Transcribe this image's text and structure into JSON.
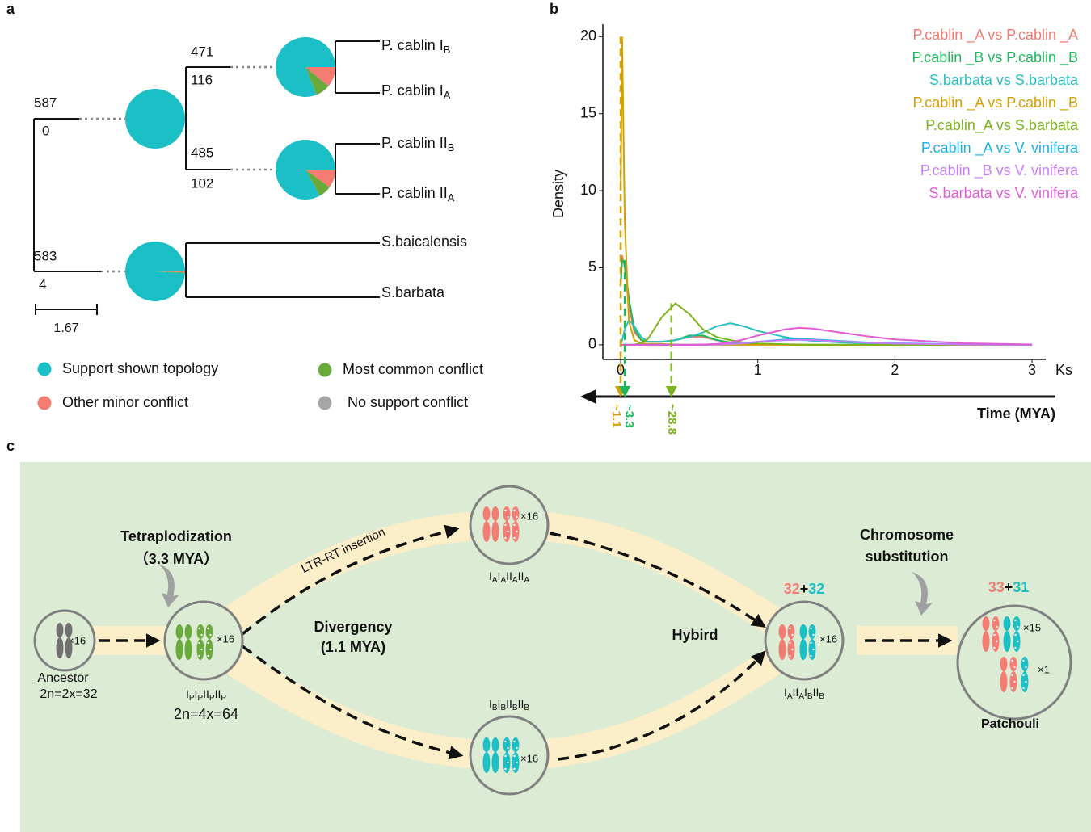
{
  "panel_a": {
    "label": "a",
    "nodes": [
      {
        "above": 587,
        "below": 0,
        "pie": [
          100,
          0,
          0
        ]
      },
      {
        "above": 471,
        "below": 116,
        "pie": [
          81,
          11,
          8
        ]
      },
      {
        "above": 485,
        "below": 102,
        "pie": [
          83,
          10,
          7
        ]
      },
      {
        "above": 583,
        "below": 4,
        "pie": [
          99,
          0.5,
          0.5
        ]
      }
    ],
    "tips": [
      {
        "name": "P. cablin I",
        "sub": "B"
      },
      {
        "name": "P. cablin I",
        "sub": "A"
      },
      {
        "name": "P. cablin II",
        "sub": "B"
      },
      {
        "name": "P. cablin II",
        "sub": "A"
      },
      {
        "name": "S.baicalensis"
      },
      {
        "name": "S.barbata"
      }
    ],
    "scale_bar": 1.67,
    "legend": [
      {
        "label": "Support shown topology",
        "color": "#1bbfc6"
      },
      {
        "label": "Other minor conflict",
        "color": "#f47d73"
      },
      {
        "label": "Most common conflict",
        "color": "#6aaa3a"
      },
      {
        "label": "No support conflict",
        "color": "#a6a6a6"
      }
    ]
  },
  "chart_data": {
    "type": "line",
    "label": "b",
    "xlabel": "Ks",
    "ylabel": "Density",
    "time_axis": "Time (MYA)",
    "x": [
      0,
      0.01,
      0.03,
      0.06,
      0.1,
      0.15,
      0.2,
      0.3,
      0.4,
      0.5,
      0.6,
      0.7,
      0.8,
      0.9,
      1.0,
      1.2,
      1.3,
      1.4,
      1.6,
      1.8,
      2.0,
      2.5,
      3.0
    ],
    "series": [
      {
        "name": "P.cablin _A vs P.cablin _A",
        "color": "#f07b72",
        "values": [
          4.0,
          5.8,
          5.0,
          2.5,
          0.8,
          0.3,
          0.2,
          0.2,
          0.3,
          0.5,
          0.5,
          0.3,
          0.15,
          0.08,
          0.05,
          0.02,
          0,
          0,
          0,
          0,
          0,
          0,
          0
        ]
      },
      {
        "name": "P.cablin _B vs P.cablin _B",
        "color": "#1db85a",
        "values": [
          3.8,
          5.5,
          5.3,
          3.0,
          1.0,
          0.3,
          0.2,
          0.2,
          0.3,
          0.6,
          0.6,
          0.3,
          0.15,
          0.08,
          0.05,
          0.02,
          0,
          0,
          0,
          0,
          0,
          0,
          0
        ]
      },
      {
        "name": "S.barbata vs S.barbata",
        "color": "#2bbfbf",
        "values": [
          0,
          0.3,
          1.0,
          1.6,
          1.2,
          0.5,
          0.2,
          0.2,
          0.3,
          0.5,
          0.8,
          1.2,
          1.4,
          1.2,
          0.9,
          0.5,
          0.35,
          0.25,
          0.15,
          0.1,
          0.05,
          0,
          0
        ]
      },
      {
        "name": "P.cablin _A vs P.cablin _B",
        "color": "#d4a000",
        "values": [
          10,
          20,
          8,
          1.5,
          0.3,
          0.1,
          0.05,
          0.05,
          0.02,
          0,
          0,
          0,
          0,
          0,
          0,
          0,
          0,
          0,
          0,
          0,
          0,
          0,
          0
        ]
      },
      {
        "name": "P.cablin_A vs S.barbata",
        "color": "#7db31c",
        "values": [
          0,
          0,
          0,
          0,
          0.02,
          0.1,
          0.4,
          1.8,
          2.7,
          2.0,
          1.0,
          0.5,
          0.3,
          0.15,
          0.08,
          0.03,
          0.02,
          0.01,
          0,
          0,
          0,
          0,
          0
        ]
      },
      {
        "name": "P.cablin _A vs V. vinifera",
        "color": "#1ab0e8",
        "values": [
          0,
          0,
          0,
          0,
          0,
          0,
          0,
          0,
          0,
          0,
          0,
          0.02,
          0.05,
          0.1,
          0.2,
          0.35,
          0.38,
          0.35,
          0.25,
          0.15,
          0.1,
          0.03,
          0
        ]
      },
      {
        "name": "P.cablin _B vs V. vinifera",
        "color": "#c77cff",
        "values": [
          0,
          0,
          0,
          0,
          0,
          0,
          0,
          0,
          0,
          0,
          0,
          0.02,
          0.05,
          0.1,
          0.2,
          0.3,
          0.32,
          0.3,
          0.22,
          0.14,
          0.08,
          0.02,
          0
        ]
      },
      {
        "name": "S.barbata vs V. vinifera",
        "color": "#e05cd6",
        "values": [
          0,
          0,
          0,
          0,
          0,
          0,
          0,
          0,
          0,
          0,
          0.02,
          0.05,
          0.15,
          0.35,
          0.6,
          1.0,
          1.1,
          1.05,
          0.8,
          0.55,
          0.35,
          0.1,
          0.02
        ]
      }
    ],
    "xlim": [
      -0.13,
      3.1
    ],
    "ylim": [
      -0.95,
      20.8
    ],
    "xticks": [
      0,
      1,
      2,
      3
    ],
    "yticks": [
      0,
      5,
      10,
      15,
      20
    ],
    "legend": "top-right",
    "annotations": [
      {
        "x": 0,
        "y": 20,
        "label": "~1.1",
        "color": "#d4a000"
      },
      {
        "x": 0.03,
        "y": 5.5,
        "label": "~3.3",
        "color": "#1db85a"
      },
      {
        "x": 0.37,
        "y": 2.7,
        "label": "~28.8",
        "color": "#7db31c"
      }
    ]
  },
  "panel_c": {
    "label": "c",
    "plus": "+",
    "ancestor": {
      "name": "Ancestor",
      "ploidy": "2n=2x=32",
      "copies": "×16"
    },
    "tetraploid": {
      "genome": [
        [
          "I",
          "P"
        ],
        [
          "I",
          "P"
        ],
        [
          "II",
          "P"
        ],
        [
          "II",
          "P"
        ]
      ],
      "ploidy": "2n=4x=64",
      "copies": "×16"
    },
    "subgenome_a": {
      "genome": [
        [
          "I",
          "A"
        ],
        [
          "I",
          "A"
        ],
        [
          "II",
          "A"
        ],
        [
          "II",
          "A"
        ]
      ],
      "copies": "×16"
    },
    "subgenome_b": {
      "genome": [
        [
          "I",
          "B"
        ],
        [
          "I",
          "B"
        ],
        [
          "II",
          "B"
        ],
        [
          "II",
          "B"
        ]
      ],
      "copies": "×16"
    },
    "hybrid": {
      "genome": [
        [
          "I",
          "A"
        ],
        [
          "II",
          "A"
        ],
        [
          "I",
          "B"
        ],
        [
          "II",
          "B"
        ]
      ],
      "copies": "×16",
      "count_a": 32,
      "count_b": 32
    },
    "patchouli": {
      "name": "Patchouli",
      "count_a": 33,
      "count_b": 31,
      "copies": [
        "×15",
        "×1"
      ]
    },
    "events": {
      "tetraploidization": "Tetraplodization",
      "tetra_time": "（3.3 MYA）",
      "ltr": "LTR-RT insertion",
      "divergency": "Divergency",
      "div_time": "(1.1 MYA)",
      "hybrid": "Hybird",
      "substitution": [
        "Chromosome",
        "substitution"
      ]
    }
  }
}
